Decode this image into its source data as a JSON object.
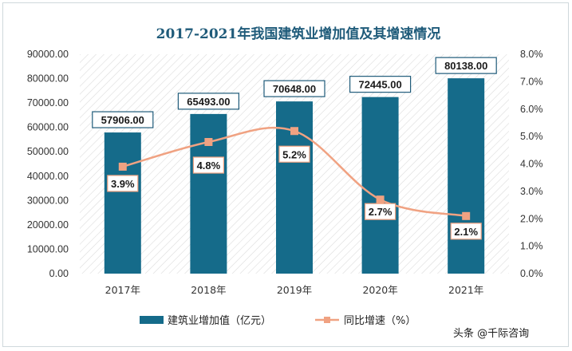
{
  "chart_data": {
    "type": "bar+line",
    "title": "2017-2021年我国建筑业增加值及其增速情况",
    "categories": [
      "2017年",
      "2018年",
      "2019年",
      "2020年",
      "2021年"
    ],
    "series": [
      {
        "name": "建筑业增加值（亿元）",
        "type": "bar",
        "axis": "left",
        "values": [
          57906.0,
          65493.0,
          70648.0,
          72445.0,
          80138.0
        ],
        "labels": [
          "57906.00",
          "65493.00",
          "70648.00",
          "72445.00",
          "80138.00"
        ],
        "color": "#156b8a"
      },
      {
        "name": "同比增速（%）",
        "type": "line",
        "axis": "right",
        "values": [
          3.9,
          4.8,
          5.2,
          2.7,
          2.1
        ],
        "labels": [
          "3.9%",
          "4.8%",
          "5.2%",
          "2.7%",
          "2.1%"
        ],
        "color": "#f0a282"
      }
    ],
    "y_left": {
      "min": 0,
      "max": 90000,
      "step": 10000,
      "ticks": [
        "0.00",
        "10000.00",
        "20000.00",
        "30000.00",
        "40000.00",
        "50000.00",
        "60000.00",
        "70000.00",
        "80000.00",
        "90000.00"
      ]
    },
    "y_right": {
      "min": 0,
      "max": 8,
      "step": 1,
      "ticks": [
        "0.0%",
        "1.0%",
        "2.0%",
        "3.0%",
        "4.0%",
        "5.0%",
        "6.0%",
        "7.0%",
        "8.0%"
      ]
    },
    "grid": false,
    "plot_background": "diagonal-hatch",
    "legend_position": "bottom",
    "label_border_color": "#1f5b7a"
  },
  "watermark": "头条 @千际咨询"
}
